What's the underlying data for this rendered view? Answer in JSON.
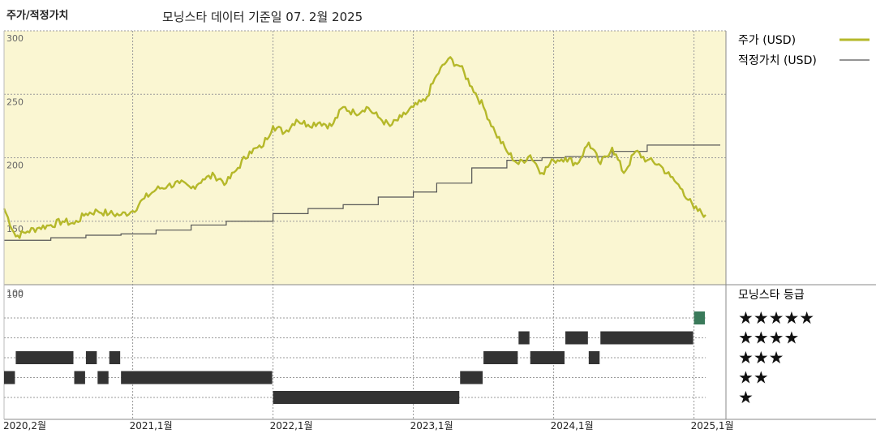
{
  "header": {
    "title": "주가/적정가치",
    "subtitle": "모닝스타 데이터 기준일 07. 2월 2025"
  },
  "colors": {
    "plot_bg": "#faf6d2",
    "price_line": "#b5b82a",
    "fair_value_line": "#555555",
    "rating_bar": "#333333",
    "rating_bar_current": "#3a7a5a"
  },
  "chart_data": [
    {
      "type": "line",
      "xlabel": "",
      "ylabel": "",
      "ylim": [
        100,
        300
      ],
      "y_ticks": [
        "100",
        "150",
        "200",
        "250",
        "300"
      ],
      "x_ticks": [
        "2020,2월",
        "2021,1월",
        "2022,1월",
        "2023,1월",
        "2024,1월",
        "2025,1월"
      ],
      "grid": "dashed vertical and horizontal",
      "legend_position": "right",
      "series": [
        {
          "name": "주가 (USD)",
          "x": [
            "2020-02",
            "2020-03",
            "2020-04",
            "2020-05",
            "2020-06",
            "2020-07",
            "2020-08",
            "2020-09",
            "2020-10",
            "2020-11",
            "2020-12",
            "2021-01",
            "2021-02",
            "2021-03",
            "2021-04",
            "2021-05",
            "2021-06",
            "2021-07",
            "2021-08",
            "2021-09",
            "2021-10",
            "2021-11",
            "2021-12",
            "2022-01",
            "2022-02",
            "2022-03",
            "2022-04",
            "2022-05",
            "2022-06",
            "2022-07",
            "2022-08",
            "2022-09",
            "2022-10",
            "2022-11",
            "2022-12",
            "2023-01",
            "2023-02",
            "2023-03",
            "2023-04",
            "2023-05",
            "2023-06",
            "2023-07",
            "2023-08",
            "2023-09",
            "2023-10",
            "2023-11",
            "2023-12",
            "2024-01",
            "2024-02",
            "2024-03",
            "2024-04",
            "2024-05",
            "2024-06",
            "2024-07",
            "2024-08",
            "2024-09",
            "2024-10",
            "2024-11",
            "2024-12",
            "2025-01",
            "2025-02"
          ],
          "values": [
            160,
            138,
            142,
            145,
            147,
            150,
            148,
            156,
            158,
            156,
            155,
            158,
            168,
            175,
            178,
            180,
            176,
            183,
            186,
            180,
            192,
            205,
            208,
            225,
            220,
            230,
            226,
            228,
            225,
            240,
            235,
            240,
            232,
            225,
            232,
            240,
            245,
            265,
            278,
            272,
            256,
            240,
            220,
            205,
            195,
            202,
            188,
            198,
            200,
            195,
            212,
            195,
            208,
            188,
            205,
            198,
            195,
            185,
            175,
            160,
            155
          ]
        },
        {
          "name": "적정가치 (USD)",
          "x": [
            "2020-02",
            "2020-06",
            "2020-09",
            "2020-12",
            "2021-03",
            "2021-06",
            "2021-09",
            "2022-01",
            "2022-04",
            "2022-07",
            "2022-10",
            "2023-01",
            "2023-03",
            "2023-06",
            "2023-09",
            "2023-12",
            "2024-02",
            "2024-06",
            "2024-09",
            "2024-12",
            "2025-02"
          ],
          "values": [
            135,
            137,
            139,
            140,
            143,
            147,
            150,
            156,
            160,
            163,
            169,
            173,
            180,
            192,
            198,
            200,
            201,
            205,
            210,
            210,
            210
          ]
        }
      ]
    },
    {
      "type": "table",
      "title": "모닝스타 등급",
      "rows": [
        "★★★★★",
        "★★★★",
        "★★★",
        "★★",
        "★"
      ],
      "y_tick": "100",
      "segments": [
        {
          "rating": 2,
          "start": "2020-02",
          "end": "2020-03"
        },
        {
          "rating": 3,
          "start": "2020-03",
          "end": "2020-08"
        },
        {
          "rating": 2,
          "start": "2020-08",
          "end": "2020-09"
        },
        {
          "rating": 3,
          "start": "2020-09",
          "end": "2020-10"
        },
        {
          "rating": 2,
          "start": "2020-10",
          "end": "2020-11"
        },
        {
          "rating": 3,
          "start": "2020-11",
          "end": "2020-12"
        },
        {
          "rating": 2,
          "start": "2020-12",
          "end": "2022-01"
        },
        {
          "rating": 1,
          "start": "2022-01",
          "end": "2023-05"
        },
        {
          "rating": 2,
          "start": "2023-05",
          "end": "2023-07"
        },
        {
          "rating": 3,
          "start": "2023-07",
          "end": "2023-10"
        },
        {
          "rating": 4,
          "start": "2023-10",
          "end": "2023-11"
        },
        {
          "rating": 3,
          "start": "2023-11",
          "end": "2024-02"
        },
        {
          "rating": 4,
          "start": "2024-02",
          "end": "2024-04"
        },
        {
          "rating": 3,
          "start": "2024-04",
          "end": "2024-05"
        },
        {
          "rating": 4,
          "start": "2024-05",
          "end": "2025-01"
        },
        {
          "rating": 5,
          "start": "2025-01",
          "end": "2025-02"
        }
      ]
    }
  ]
}
